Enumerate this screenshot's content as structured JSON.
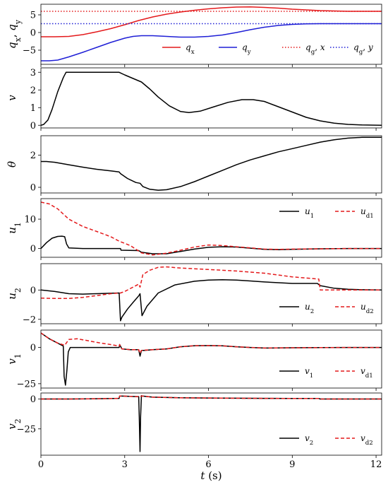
{
  "chart_data": [
    {
      "type": "line",
      "ylabel": "q_x, q_y",
      "ylim": [
        -9,
        8
      ],
      "yticks": [
        -5,
        0,
        5
      ],
      "legend": "bottom-right",
      "series": [
        {
          "name": "q_x",
          "color": "#e41a1c",
          "style": "solid",
          "x": [
            0,
            0.5,
            1,
            1.5,
            2,
            2.5,
            3,
            3.5,
            4,
            4.5,
            5,
            5.5,
            6,
            6.5,
            7,
            7.5,
            8,
            8.5,
            9,
            9.5,
            10,
            10.5,
            11,
            11.5,
            12.2
          ],
          "y": [
            -1.2,
            -1.2,
            -1.1,
            -0.6,
            0.2,
            1.1,
            2.2,
            3.4,
            4.4,
            5.2,
            5.8,
            6.3,
            6.7,
            7.0,
            7.2,
            7.25,
            7.1,
            6.9,
            6.6,
            6.4,
            6.2,
            6.1,
            6.0,
            6.0,
            6.0
          ]
        },
        {
          "name": "q_y",
          "color": "#1f1fd6",
          "style": "solid",
          "x": [
            0,
            0.3,
            0.6,
            1,
            1.5,
            2,
            2.5,
            3,
            3.3,
            3.6,
            4,
            4.5,
            5,
            5.5,
            6,
            6.5,
            7,
            7.5,
            8,
            8.5,
            9,
            9.5,
            10,
            10.5,
            11,
            12.2
          ],
          "y": [
            -8.0,
            -8.0,
            -7.8,
            -6.9,
            -5.6,
            -4.2,
            -2.8,
            -1.6,
            -1.1,
            -0.9,
            -0.9,
            -1.1,
            -1.3,
            -1.3,
            -1.1,
            -0.7,
            0.0,
            0.8,
            1.5,
            2.0,
            2.3,
            2.45,
            2.5,
            2.5,
            2.5,
            2.5
          ]
        },
        {
          "name": "q_g,x",
          "color": "#e41a1c",
          "style": "dotted",
          "x": [
            0,
            12.2
          ],
          "y": [
            6.0,
            6.0
          ]
        },
        {
          "name": "q_g,y",
          "color": "#1f1fd6",
          "style": "dotted",
          "x": [
            0,
            12.2
          ],
          "y": [
            2.5,
            2.5
          ]
        }
      ]
    },
    {
      "type": "line",
      "ylabel": "v",
      "ylim": [
        -0.15,
        3.25
      ],
      "yticks": [
        0,
        1,
        2,
        3
      ],
      "series": [
        {
          "name": "",
          "color": "#000000",
          "style": "solid",
          "x": [
            0,
            0.1,
            0.25,
            0.4,
            0.6,
            0.8,
            0.9,
            1.5,
            2,
            2.5,
            2.8,
            3.0,
            3.3,
            3.6,
            3.9,
            4.2,
            4.6,
            5.0,
            5.3,
            5.7,
            6.2,
            6.7,
            7.2,
            7.6,
            8.0,
            8.5,
            9.0,
            9.5,
            10.0,
            10.5,
            11.0,
            11.5,
            12.2
          ],
          "y": [
            0,
            0.05,
            0.3,
            0.9,
            1.9,
            2.7,
            3.0,
            3.0,
            3.0,
            3.0,
            3.0,
            2.85,
            2.65,
            2.45,
            2.05,
            1.6,
            1.1,
            0.78,
            0.72,
            0.8,
            1.05,
            1.3,
            1.45,
            1.45,
            1.35,
            1.05,
            0.75,
            0.45,
            0.25,
            0.12,
            0.05,
            0.02,
            0.0
          ]
        }
      ]
    },
    {
      "type": "line",
      "ylabel": "θ",
      "ylim": [
        -0.35,
        3.2
      ],
      "yticks": [
        0,
        2
      ],
      "series": [
        {
          "name": "",
          "color": "#000000",
          "style": "solid",
          "x": [
            0,
            0.2,
            0.5,
            1,
            1.5,
            2,
            2.5,
            2.8,
            2.85,
            3.1,
            3.4,
            3.55,
            3.65,
            3.9,
            4.2,
            4.5,
            5,
            5.5,
            6,
            6.5,
            7,
            7.5,
            8,
            8.5,
            9,
            9.5,
            10,
            10.5,
            11,
            11.5,
            12.2
          ],
          "y": [
            1.6,
            1.6,
            1.55,
            1.4,
            1.25,
            1.12,
            1.02,
            0.95,
            0.85,
            0.55,
            0.3,
            0.25,
            0.05,
            -0.12,
            -0.18,
            -0.15,
            0.05,
            0.35,
            0.7,
            1.05,
            1.4,
            1.7,
            1.95,
            2.2,
            2.4,
            2.6,
            2.8,
            2.95,
            3.05,
            3.1,
            3.1
          ]
        }
      ]
    },
    {
      "type": "line",
      "ylabel": "u_1",
      "ylim": [
        -3.0,
        17.0
      ],
      "yticks": [
        0,
        10
      ],
      "legend": "top-right",
      "series": [
        {
          "name": "u_1",
          "color": "#000000",
          "style": "solid",
          "x": [
            0,
            0.2,
            0.4,
            0.6,
            0.75,
            0.85,
            0.92,
            1.0,
            1.5,
            2,
            2.5,
            2.85,
            2.87,
            3.5,
            3.6,
            4,
            4.5,
            5,
            5.5,
            6,
            6.5,
            7,
            7.5,
            8,
            8.5,
            9,
            10,
            11,
            12.2
          ],
          "y": [
            0,
            2.0,
            3.5,
            4.1,
            4.2,
            4.0,
            1.5,
            0.2,
            0.0,
            0.0,
            0.0,
            0.0,
            -0.6,
            -0.7,
            -1.3,
            -1.8,
            -1.8,
            -1.0,
            -0.2,
            0.4,
            0.6,
            0.5,
            0.1,
            -0.3,
            -0.4,
            -0.3,
            -0.1,
            0.0,
            0.0
          ]
        },
        {
          "name": "u_d1",
          "color": "#e41a1c",
          "style": "dashed",
          "x": [
            0,
            0.3,
            0.6,
            1,
            1.5,
            2,
            2.5,
            2.8,
            3.2,
            3.6,
            4,
            4.5,
            5,
            5.5,
            6,
            6.5,
            7,
            7.5,
            8,
            8.5,
            9,
            10,
            11,
            12.2
          ],
          "y": [
            15.8,
            15.2,
            13.5,
            10.0,
            7.5,
            5.8,
            4.0,
            2.5,
            1.0,
            -1.5,
            -2.2,
            -1.6,
            -0.6,
            0.5,
            1.2,
            1.0,
            0.6,
            0.2,
            -0.2,
            -0.3,
            -0.2,
            -0.1,
            0.0,
            0.0
          ]
        }
      ]
    },
    {
      "type": "line",
      "ylabel": "u_2",
      "ylim": [
        -2.3,
        1.8
      ],
      "yticks": [
        -2,
        0
      ],
      "legend": "bottom-right",
      "series": [
        {
          "name": "u_2",
          "color": "#000000",
          "style": "solid",
          "x": [
            0,
            0.5,
            1,
            1.5,
            2,
            2.5,
            2.8,
            2.85,
            2.9,
            3.1,
            3.3,
            3.5,
            3.55,
            3.62,
            3.8,
            4.2,
            4.8,
            5.5,
            6,
            6.5,
            7,
            7.5,
            8,
            9,
            9.9,
            10.0,
            10.5,
            11,
            11.5,
            12.2
          ],
          "y": [
            0.0,
            -0.1,
            -0.25,
            -0.28,
            -0.25,
            -0.22,
            -0.2,
            -2.1,
            -1.85,
            -1.3,
            -0.85,
            -0.4,
            -0.25,
            -1.75,
            -1.1,
            -0.2,
            0.35,
            0.6,
            0.68,
            0.7,
            0.68,
            0.62,
            0.55,
            0.45,
            0.45,
            0.3,
            0.12,
            0.05,
            0.02,
            0.0
          ]
        },
        {
          "name": "u_d2",
          "color": "#e41a1c",
          "style": "dashed",
          "x": [
            0,
            0.5,
            1,
            1.5,
            2,
            2.5,
            2.85,
            3.0,
            3.3,
            3.5,
            3.55,
            3.65,
            3.9,
            4.2,
            4.5,
            5,
            6,
            7,
            8,
            9,
            9.95,
            10.0,
            10.5,
            11,
            12.2
          ],
          "y": [
            -0.55,
            -0.58,
            -0.58,
            -0.5,
            -0.38,
            -0.25,
            -0.2,
            -0.1,
            0.2,
            0.4,
            0.2,
            1.05,
            1.35,
            1.55,
            1.58,
            1.5,
            1.4,
            1.3,
            1.15,
            0.9,
            0.75,
            0.0,
            0.0,
            0.0,
            0.0
          ]
        }
      ]
    },
    {
      "type": "line",
      "ylabel": "v_1",
      "ylim": [
        -28,
        12
      ],
      "yticks": [
        -25,
        0
      ],
      "legend": "bottom-right",
      "series": [
        {
          "name": "v_1",
          "color": "#000000",
          "style": "solid",
          "x": [
            0,
            0.3,
            0.6,
            0.8,
            0.83,
            0.88,
            0.93,
            0.98,
            1.05,
            1.5,
            2,
            2.5,
            2.8,
            2.82,
            2.9,
            3.2,
            3.5,
            3.55,
            3.6,
            3.7,
            4,
            4.5,
            5,
            5.5,
            6,
            6.5,
            7,
            7.5,
            8,
            8.5,
            9,
            10,
            11,
            12.2
          ],
          "y": [
            10,
            6,
            3,
            1,
            -20,
            -26,
            -16,
            -3,
            0,
            0,
            0,
            0,
            0,
            2,
            -1,
            -1.5,
            -1.5,
            -6,
            -2,
            -2,
            -1.5,
            -1,
            0.5,
            1.2,
            1.3,
            1.1,
            0.5,
            0,
            -0.4,
            -0.3,
            -0.2,
            -0.1,
            0,
            0
          ]
        },
        {
          "name": "v_d1",
          "color": "#e41a1c",
          "style": "dashed",
          "x": [
            0,
            0.3,
            0.6,
            0.85,
            1.0,
            1.3,
            1.6,
            2,
            2.5,
            2.8,
            2.82,
            2.9,
            3.2,
            3.5,
            3.55,
            3.6,
            4,
            4.5,
            5,
            5.5,
            6,
            6.5,
            7,
            8,
            9,
            10,
            11,
            12.2
          ],
          "y": [
            10,
            6,
            3,
            1.5,
            5.5,
            6.0,
            5.0,
            3.5,
            2,
            1,
            2,
            -1,
            -1.5,
            -1.5,
            -4,
            -2,
            -1.5,
            -1,
            0.5,
            1.2,
            1.3,
            1.1,
            0.5,
            -0.4,
            -0.2,
            -0.1,
            0,
            0
          ]
        }
      ]
    },
    {
      "type": "line",
      "ylabel": "v_2",
      "ylim": [
        -47,
        5
      ],
      "yticks": [
        -25,
        0
      ],
      "legend": "bottom-right",
      "series": [
        {
          "name": "v_2",
          "color": "#000000",
          "style": "solid",
          "x": [
            0,
            1,
            2,
            2.8,
            2.82,
            3.45,
            3.5,
            3.52,
            3.55,
            3.57,
            3.6,
            3.62,
            4,
            5,
            6,
            7,
            8,
            9,
            9.95,
            10.0,
            11,
            12.2
          ],
          "y": [
            0,
            0,
            0.2,
            0.5,
            2.5,
            2.0,
            2.0,
            -15,
            -44,
            -15,
            2.8,
            2.5,
            1.5,
            1.0,
            0.8,
            0.6,
            0.5,
            0.4,
            0.4,
            0,
            0,
            0
          ]
        },
        {
          "name": "v_d2",
          "color": "#e41a1c",
          "style": "dashed",
          "x": [
            0,
            1,
            2,
            2.8,
            2.82,
            3.45,
            3.5,
            3.55,
            3.62,
            4,
            5,
            6,
            7,
            8,
            9,
            9.95,
            10.0,
            11,
            12.2
          ],
          "y": [
            0,
            0,
            0.2,
            0.5,
            2.5,
            2.0,
            2.0,
            2.0,
            2.5,
            1.5,
            1.0,
            0.8,
            0.6,
            0.5,
            0.4,
            0.4,
            0,
            0,
            0
          ]
        }
      ]
    }
  ],
  "x_axis": {
    "xlim": [
      0,
      12.2
    ],
    "ticks": [
      0,
      3,
      6,
      9,
      12
    ],
    "xlabel": "t (s)"
  }
}
